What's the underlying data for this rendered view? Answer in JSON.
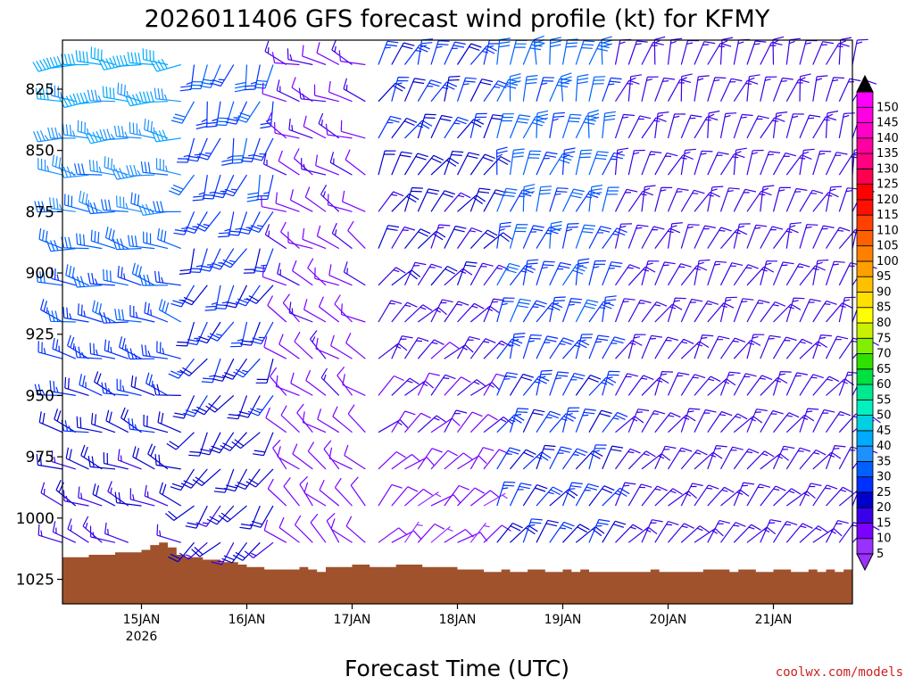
{
  "chart_data": {
    "type": "wind-barb-profile",
    "title": "2026011406 GFS forecast wind profile (kt) for KFMY",
    "xlabel": "Forecast Time (UTC)",
    "credit": "coolwx.com/models",
    "credit_color": "#cc2020",
    "terrain_color": "#a0522d",
    "y_axis": {
      "unit": "hPa",
      "ylim": [
        1035,
        805
      ],
      "ticks": [
        "825",
        "850",
        "875",
        "900",
        "925",
        "950",
        "975",
        "1000",
        "1025"
      ],
      "levels": [
        815,
        830,
        845,
        860,
        875,
        890,
        905,
        920,
        935,
        950,
        965,
        980,
        995,
        1010
      ]
    },
    "x_axis": {
      "xlim": [
        0,
        180
      ],
      "ticks": [
        {
          "label": "15JAN",
          "sub": "2026",
          "hour": 18
        },
        {
          "label": "16JAN",
          "sub": "",
          "hour": 42
        },
        {
          "label": "17JAN",
          "sub": "",
          "hour": 66
        },
        {
          "label": "18JAN",
          "sub": "",
          "hour": 90
        },
        {
          "label": "19JAN",
          "sub": "",
          "hour": 114
        },
        {
          "label": "20JAN",
          "sub": "",
          "hour": 138
        },
        {
          "label": "21JAN",
          "sub": "",
          "hour": 162
        }
      ]
    },
    "colorbar": {
      "labels": [
        "5",
        "10",
        "15",
        "20",
        "25",
        "30",
        "35",
        "40",
        "45",
        "50",
        "55",
        "60",
        "65",
        "70",
        "75",
        "80",
        "85",
        "90",
        "95",
        "100",
        "105",
        "110",
        "115",
        "120",
        "125",
        "130",
        "135",
        "140",
        "145",
        "150"
      ],
      "colors": [
        "#9b30ff",
        "#7b00ff",
        "#3a00e8",
        "#0000cd",
        "#0030ff",
        "#0060ff",
        "#1e90ff",
        "#00aaff",
        "#00d0e0",
        "#00f0c0",
        "#00e890",
        "#00e040",
        "#30e000",
        "#80f000",
        "#c8f000",
        "#ffff00",
        "#ffe000",
        "#ffc000",
        "#ffa000",
        "#ff8000",
        "#ff6000",
        "#ff4000",
        "#ff1000",
        "#ff0000",
        "#ff0050",
        "#ff0080",
        "#ff00a0",
        "#ff00c8",
        "#ff00e0",
        "#ff00ff"
      ]
    },
    "surface_pressure": [
      1016,
      1016,
      1016,
      1015,
      1015,
      1015,
      1014,
      1014,
      1014,
      1013,
      1011,
      1010,
      1012,
      1015,
      1016,
      1016,
      1017,
      1017,
      1018,
      1018,
      1019,
      1020,
      1020,
      1021,
      1021,
      1021,
      1021,
      1020,
      1021,
      1022,
      1020,
      1020,
      1020,
      1019,
      1019,
      1020,
      1020,
      1020,
      1019,
      1019,
      1019,
      1020,
      1020,
      1020,
      1020,
      1021,
      1021,
      1021,
      1022,
      1022,
      1021,
      1022,
      1022,
      1021,
      1021,
      1022,
      1022,
      1021,
      1022,
      1021,
      1022,
      1022,
      1022,
      1022,
      1022,
      1022,
      1022,
      1021,
      1022,
      1022,
      1022,
      1022,
      1022,
      1021,
      1021,
      1021,
      1022,
      1021,
      1021,
      1022,
      1022,
      1021,
      1021,
      1022,
      1022,
      1021,
      1022,
      1021,
      1022,
      1021
    ],
    "wind_hours": [
      0,
      3,
      6,
      9,
      12,
      15,
      18,
      21,
      24,
      27,
      30,
      33,
      36,
      39,
      42,
      45,
      48,
      51,
      54,
      57,
      60,
      63,
      66,
      69,
      72,
      75,
      78,
      81,
      84,
      87,
      90,
      93,
      96,
      99,
      102,
      105,
      108,
      111,
      114,
      117,
      120,
      123,
      126,
      129,
      132,
      135,
      138,
      141,
      144,
      147,
      150,
      153,
      156,
      159,
      162,
      165,
      168,
      171,
      174,
      177,
      180
    ],
    "wind_phases": [
      {
        "h_end": 27,
        "dir": 270,
        "spd_top": 40,
        "spd_bot": 15
      },
      {
        "h_end": 48,
        "dir": 195,
        "spd_top": 28,
        "spd_bot": 18
      },
      {
        "h_end": 69,
        "dir": 290,
        "spd_top": 12,
        "spd_bot": 10
      },
      {
        "h_end": 96,
        "dir": 25,
        "spd_top": 24,
        "spd_bot": 8
      },
      {
        "h_end": 123,
        "dir": 10,
        "spd_top": 30,
        "spd_bot": 22
      },
      {
        "h_end": 180,
        "dir": 15,
        "spd_top": 15,
        "spd_bot": 15
      }
    ]
  }
}
